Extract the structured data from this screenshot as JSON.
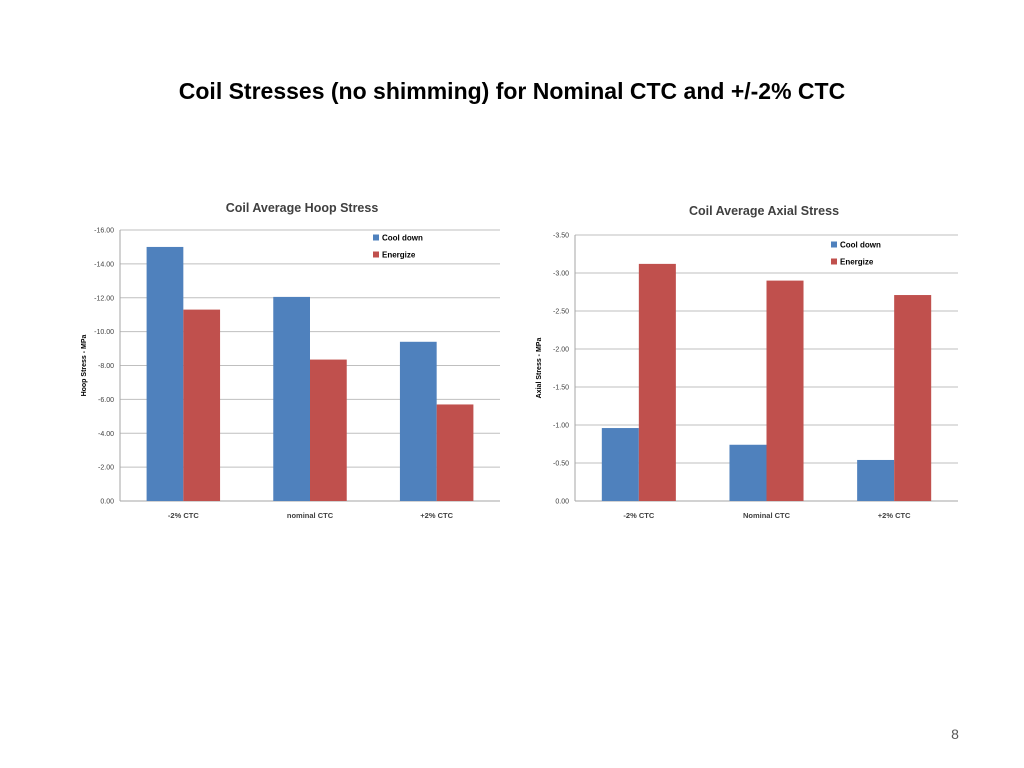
{
  "slide": {
    "title": "Coil Stresses (no shimming) for Nominal CTC and +/-2% CTC",
    "page_number": "8"
  },
  "colors": {
    "cool_down": "#4F81BD",
    "energize": "#C0504D",
    "gridline": "#BFBFBF",
    "axis": "#A6A6A6"
  },
  "chart_data": [
    {
      "type": "bar",
      "title": "Coil Average Hoop Stress",
      "xlabel": "",
      "ylabel": "Hoop Stress - MPa",
      "categories": [
        "-2% CTC",
        "nominal CTC",
        "+2% CTC"
      ],
      "series": [
        {
          "name": "Cool down",
          "color": "#4F81BD",
          "values": [
            -15.0,
            -12.05,
            -9.4
          ]
        },
        {
          "name": "Energize",
          "color": "#C0504D",
          "values": [
            -11.3,
            -8.35,
            -5.7
          ]
        }
      ],
      "ylim": [
        0,
        -16
      ],
      "yticks": [
        "-16.00",
        "-14.00",
        "-12.00",
        "-10.00",
        "-8.00",
        "-6.00",
        "-4.00",
        "-2.00",
        "0.00"
      ],
      "grid": true,
      "legend_position": "top-right"
    },
    {
      "type": "bar",
      "title": "Coil Average Axial Stress",
      "xlabel": "",
      "ylabel": "Axial Stress - MPa",
      "categories": [
        "-2% CTC",
        "Nominal CTC",
        "+2% CTC"
      ],
      "series": [
        {
          "name": "Cool down",
          "color": "#4F81BD",
          "values": [
            -0.96,
            -0.74,
            -0.54
          ]
        },
        {
          "name": "Energize",
          "color": "#C0504D",
          "values": [
            -3.12,
            -2.9,
            -2.71
          ]
        }
      ],
      "ylim": [
        0,
        -3.5
      ],
      "yticks": [
        "-3.50",
        "-3.00",
        "-2.50",
        "-2.00",
        "-1.50",
        "-1.00",
        "-0.50",
        "0.00"
      ],
      "grid": true,
      "legend_position": "top-right"
    }
  ]
}
